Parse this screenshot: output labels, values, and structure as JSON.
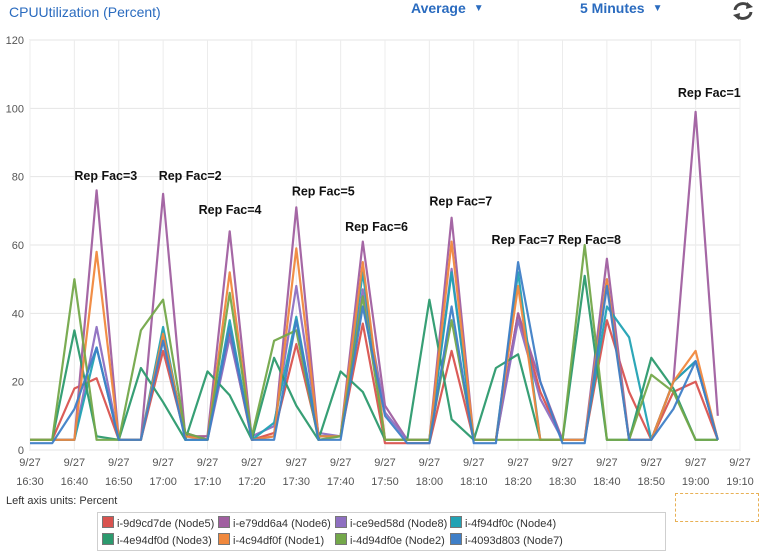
{
  "header": {
    "metric_title": "CPUUtilization (Percent)",
    "statistic": "Average",
    "period": "5 Minutes",
    "refresh_icon": "refresh-icon",
    "dropdown_icon": "chevron-down-icon"
  },
  "axis_note": {
    "label": "Left axis units:",
    "unit": "Percent"
  },
  "chart_data": {
    "type": "line",
    "ylim": [
      0,
      120
    ],
    "yticks": [
      0,
      20,
      40,
      60,
      80,
      100,
      120
    ],
    "grid": true,
    "x_ticks": [
      {
        "date": "9/27",
        "time": "16:30"
      },
      {
        "date": "9/27",
        "time": "16:40"
      },
      {
        "date": "9/27",
        "time": "16:50"
      },
      {
        "date": "9/27",
        "time": "17:00"
      },
      {
        "date": "9/27",
        "time": "17:10"
      },
      {
        "date": "9/27",
        "time": "17:20"
      },
      {
        "date": "9/27",
        "time": "17:30"
      },
      {
        "date": "9/27",
        "time": "17:40"
      },
      {
        "date": "9/27",
        "time": "17:50"
      },
      {
        "date": "9/27",
        "time": "18:00"
      },
      {
        "date": "9/27",
        "time": "18:10"
      },
      {
        "date": "9/27",
        "time": "18:20"
      },
      {
        "date": "9/27",
        "time": "18:30"
      },
      {
        "date": "9/27",
        "time": "18:40"
      },
      {
        "date": "9/27",
        "time": "18:50"
      },
      {
        "date": "9/27",
        "time": "19:00"
      },
      {
        "date": "9/27",
        "time": "19:10"
      }
    ],
    "x": [
      "16:30",
      "16:35",
      "16:40",
      "16:45",
      "16:50",
      "16:55",
      "17:00",
      "17:05",
      "17:10",
      "17:15",
      "17:20",
      "17:25",
      "17:30",
      "17:35",
      "17:40",
      "17:45",
      "17:50",
      "17:55",
      "18:00",
      "18:05",
      "18:10",
      "18:15",
      "18:20",
      "18:25",
      "18:30",
      "18:35",
      "18:40",
      "18:45",
      "18:50",
      "18:55",
      "19:00",
      "19:05"
    ],
    "series": [
      {
        "name": "i-9d9cd7de (Node5)",
        "color": "#d9534f",
        "values": [
          3,
          3,
          18,
          21,
          3,
          3,
          29,
          4,
          4,
          34,
          3,
          5,
          31,
          4,
          4,
          37,
          2,
          2,
          2,
          29,
          3,
          3,
          40,
          17,
          3,
          3,
          38,
          17,
          3,
          17,
          20,
          3
        ]
      },
      {
        "name": "i-e79dd6a4 (Node6)",
        "color": "#a05fa0",
        "values": [
          3,
          3,
          3,
          76,
          3,
          3,
          75,
          4,
          4,
          64,
          3,
          4,
          71,
          4,
          4,
          61,
          13,
          3,
          3,
          68,
          3,
          3,
          40,
          20,
          3,
          3,
          56,
          3,
          3,
          20,
          99,
          10
        ]
      },
      {
        "name": "i-ce9ed58d (Node8)",
        "color": "#8e6fc1",
        "values": [
          3,
          3,
          3,
          36,
          3,
          3,
          33,
          5,
          3,
          33,
          4,
          7,
          48,
          5,
          4,
          47,
          11,
          3,
          3,
          53,
          3,
          3,
          38,
          15,
          3,
          3,
          50,
          3,
          3,
          20,
          26,
          3
        ]
      },
      {
        "name": "i-4f94df0c (Node4)",
        "color": "#22a2b4",
        "values": [
          3,
          3,
          3,
          30,
          3,
          3,
          36,
          3,
          3,
          38,
          3,
          8,
          39,
          4,
          4,
          52,
          3,
          3,
          3,
          52,
          3,
          3,
          52,
          3,
          3,
          3,
          42,
          33,
          3,
          20,
          26,
          3
        ]
      },
      {
        "name": "i-4e94df0d (Node3)",
        "color": "#2c9a6e",
        "values": [
          3,
          3,
          35,
          4,
          3,
          24,
          14,
          3,
          23,
          16,
          3,
          27,
          13,
          3,
          23,
          17,
          3,
          3,
          44,
          9,
          3,
          24,
          28,
          3,
          3,
          51,
          3,
          3,
          27,
          18,
          3,
          3
        ]
      },
      {
        "name": "i-4c94df0f (Node1)",
        "color": "#f0883d",
        "values": [
          3,
          3,
          3,
          58,
          3,
          3,
          34,
          4,
          3,
          52,
          3,
          4,
          59,
          4,
          4,
          55,
          3,
          3,
          3,
          61,
          3,
          3,
          48,
          3,
          3,
          3,
          50,
          3,
          3,
          20,
          29,
          3
        ]
      },
      {
        "name": "i-4d94df0e (Node2)",
        "color": "#74a84a",
        "values": [
          3,
          3,
          50,
          3,
          3,
          35,
          44,
          5,
          3,
          46,
          4,
          32,
          35,
          3,
          4,
          45,
          3,
          3,
          3,
          38,
          3,
          3,
          3,
          3,
          3,
          60,
          3,
          3,
          22,
          17,
          3,
          3
        ]
      },
      {
        "name": "i-4093d803 (Node7)",
        "color": "#3f7fc7",
        "values": [
          2,
          2,
          12,
          30,
          3,
          3,
          32,
          3,
          3,
          36,
          3,
          3,
          38,
          3,
          3,
          42,
          10,
          2,
          2,
          42,
          2,
          2,
          55,
          20,
          2,
          2,
          48,
          3,
          3,
          12,
          26,
          3
        ]
      }
    ],
    "annotations": [
      {
        "text": "Rep Fac=3",
        "x": "16:40",
        "y": 80.5
      },
      {
        "text": "Rep Fac=2",
        "x": "16:59",
        "y": 80.5
      },
      {
        "text": "Rep Fac=4",
        "x": "17:08",
        "y": 70.5
      },
      {
        "text": "Rep Fac=5",
        "x": "17:29",
        "y": 76.0
      },
      {
        "text": "Rep Fac=6",
        "x": "17:41",
        "y": 65.5
      },
      {
        "text": "Rep Fac=7",
        "x": "18:00",
        "y": 73.0
      },
      {
        "text": "Rep Fac=7",
        "x": "18:14",
        "y": 61.8
      },
      {
        "text": "Rep Fac=8",
        "x": "18:29",
        "y": 61.8
      },
      {
        "text": "Rep Fac=1",
        "x": "18:56",
        "y": 104.8
      }
    ]
  }
}
